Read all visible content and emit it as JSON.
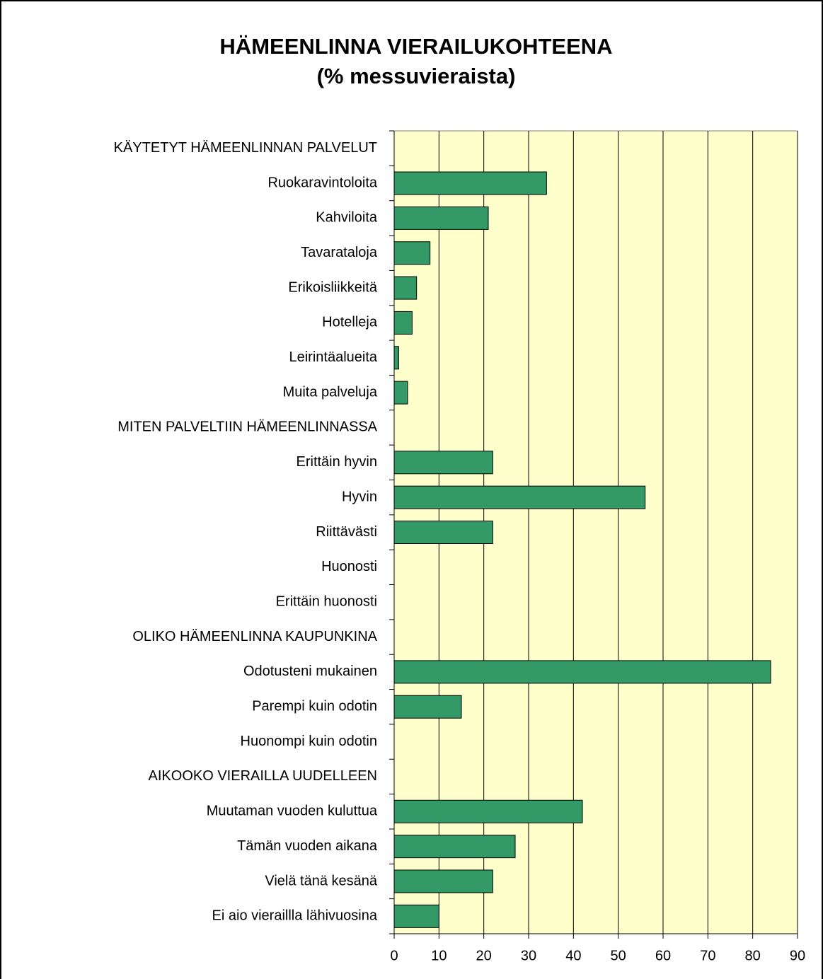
{
  "chart_data": {
    "type": "bar",
    "orientation": "horizontal",
    "title": "HÄMEENLINNA VIERAILUKOHTEENA",
    "subtitle": "(% messuvieraista)",
    "categories": [
      "KÄYTETYT HÄMEENLINNAN PALVELUT",
      "Ruokaravintoloita",
      "Kahviloita",
      "Tavarataloja",
      "Erikoisliikkeitä",
      "Hotelleja",
      "Leirintäalueita",
      "Muita palveluja",
      "MITEN PALVELTIIN HÄMEENLINNASSA",
      "Erittäin hyvin",
      "Hyvin",
      "Riittävästi",
      "Huonosti",
      "Erittäin huonosti",
      "OLIKO HÄMEENLINNA KAUPUNKINA",
      "Odotusteni mukainen",
      "Parempi kuin odotin",
      "Huonompi kuin odotin",
      "AIKOOKO VIERAILLA UUDELLEEN",
      "Muutaman vuoden kuluttua",
      "Tämän vuoden aikana",
      "Vielä tänä kesänä",
      "Ei aio vieraillla lähivuosina"
    ],
    "values": [
      null,
      34,
      21,
      8,
      5,
      4,
      1,
      3,
      null,
      22,
      56,
      22,
      0,
      0,
      null,
      84,
      15,
      0,
      null,
      42,
      27,
      22,
      10
    ],
    "color": "#339966",
    "plot_background": "#ffffcc",
    "xlim": [
      0,
      90
    ],
    "xticks": [
      0,
      10,
      20,
      30,
      40,
      50,
      60,
      70,
      80,
      90
    ],
    "grid": true
  }
}
